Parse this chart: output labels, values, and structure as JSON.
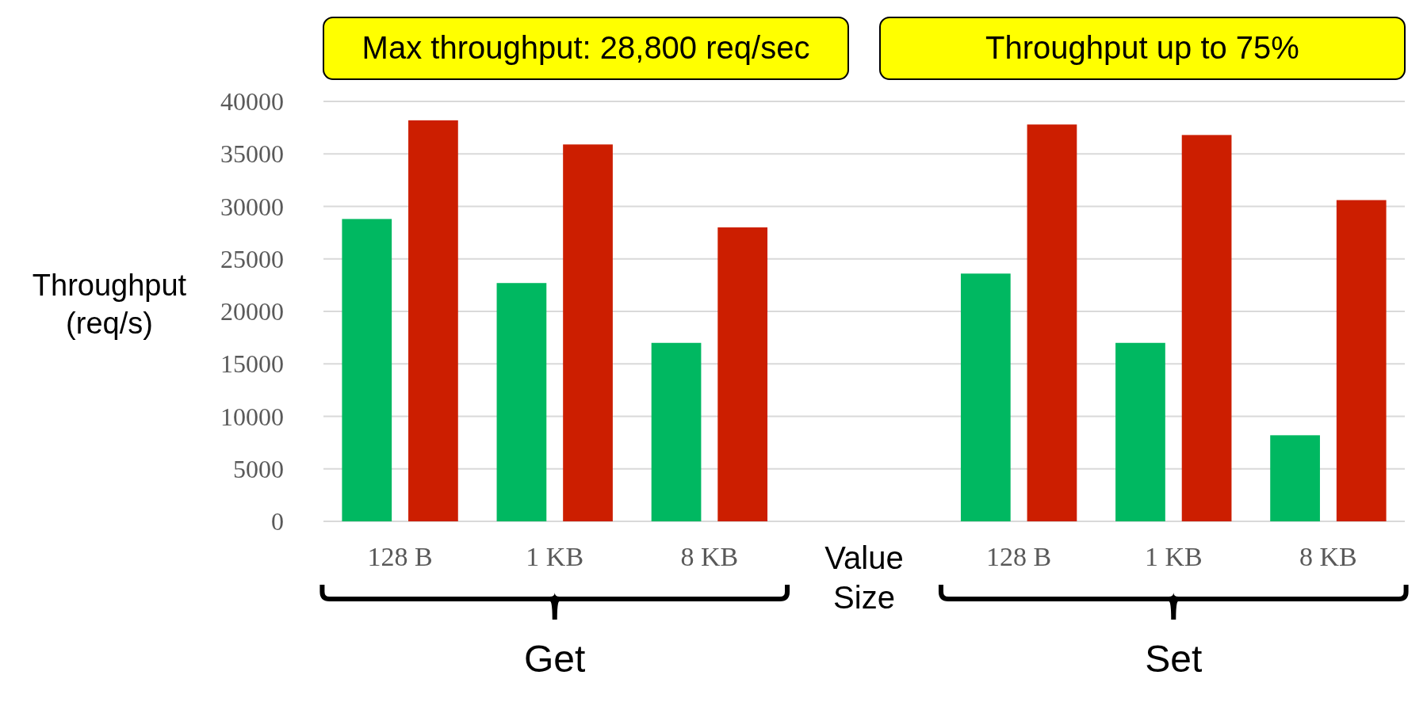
{
  "chart_data": {
    "type": "bar",
    "categories": [
      "128 B",
      "1 KB",
      "8 KB",
      null,
      "128 B",
      "1 KB",
      "8 KB"
    ],
    "xlabel": "Value Size",
    "ylabel": "Throughput (req/s)",
    "series": [
      {
        "color": "#00b861",
        "values": [
          28800,
          22700,
          17000,
          null,
          23600,
          17000,
          8200
        ]
      },
      {
        "color": "#cc1e00",
        "values": [
          38200,
          35900,
          28000,
          null,
          37800,
          36800,
          30600
        ]
      }
    ],
    "ylim": [
      0,
      40000
    ],
    "yticks": [
      0,
      5000,
      10000,
      15000,
      20000,
      25000,
      30000,
      35000,
      40000
    ],
    "grid": "y",
    "annotations": [
      "Max throughput: 28,800 req/sec",
      "Throughput up to 75%",
      "Get",
      "Set"
    ]
  }
}
